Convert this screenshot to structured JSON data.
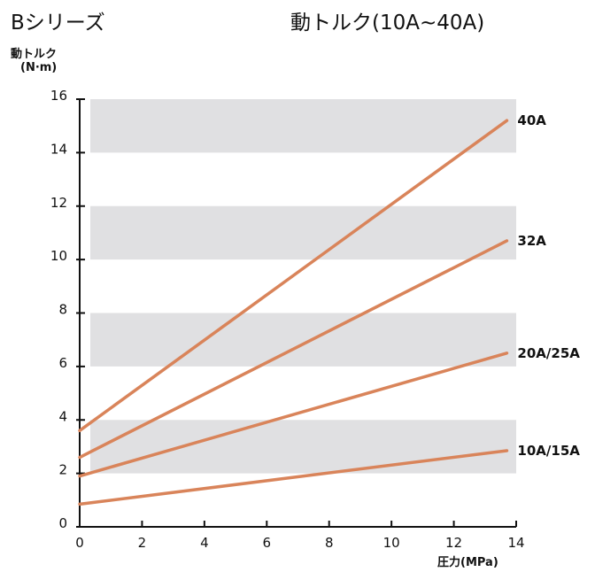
{
  "header": {
    "series_title": "Bシリーズ",
    "chart_title": "動トルク(10A~40A)"
  },
  "axes": {
    "ylabel_line1": "動トルク",
    "ylabel_line2": "(N·m)",
    "xlabel": "圧力(MPa)"
  },
  "chart_data": {
    "type": "line",
    "title": "動トルク(10A~40A)",
    "xlabel": "圧力(MPa)",
    "ylabel": "動トルク (N·m)",
    "xlim": [
      0,
      14
    ],
    "ylim": [
      0,
      16
    ],
    "xticks": [
      0,
      2,
      4,
      6,
      8,
      10,
      12,
      14
    ],
    "yticks": [
      0,
      2,
      4,
      6,
      8,
      10,
      12,
      14,
      16
    ],
    "bands": [
      [
        2,
        4
      ],
      [
        6,
        8
      ],
      [
        10,
        12
      ],
      [
        14,
        16
      ]
    ],
    "band_color": "#e0e0e2",
    "line_color": "#d9845a",
    "legend_placement": "right end of each line",
    "series": [
      {
        "name": "40A",
        "x": [
          0,
          13.7
        ],
        "y": [
          3.6,
          15.2
        ]
      },
      {
        "name": "32A",
        "x": [
          0,
          13.7
        ],
        "y": [
          2.6,
          10.7
        ]
      },
      {
        "name": "20A/25A",
        "x": [
          0,
          13.7
        ],
        "y": [
          1.9,
          6.5
        ]
      },
      {
        "name": "10A/15A",
        "x": [
          0,
          13.7
        ],
        "y": [
          0.85,
          2.85
        ]
      }
    ]
  }
}
